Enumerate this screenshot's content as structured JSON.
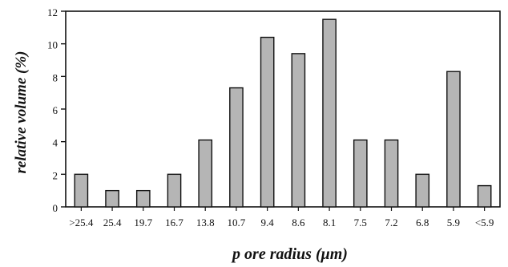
{
  "chart_data": {
    "type": "bar",
    "title": "",
    "xlabel": "p ore radius (μm)",
    "ylabel": "relative volume (%)",
    "categories": [
      ">25.4",
      "25.4",
      "19.7",
      "16.7",
      "13.8",
      "10.7",
      "9.4",
      "8.6",
      "8.1",
      "7.5",
      "7.2",
      "6.8",
      "5.9",
      "<5.9"
    ],
    "values": [
      2.0,
      1.0,
      1.0,
      2.0,
      4.1,
      7.3,
      10.4,
      9.4,
      11.5,
      4.1,
      4.1,
      2.0,
      8.3,
      1.3
    ],
    "ylim": [
      0,
      12
    ],
    "yticks": [
      0,
      2,
      4,
      6,
      8,
      10,
      12
    ],
    "grid": false,
    "legend": "none",
    "bar_color": "#b5b5b5",
    "bar_stroke": "#111111"
  }
}
